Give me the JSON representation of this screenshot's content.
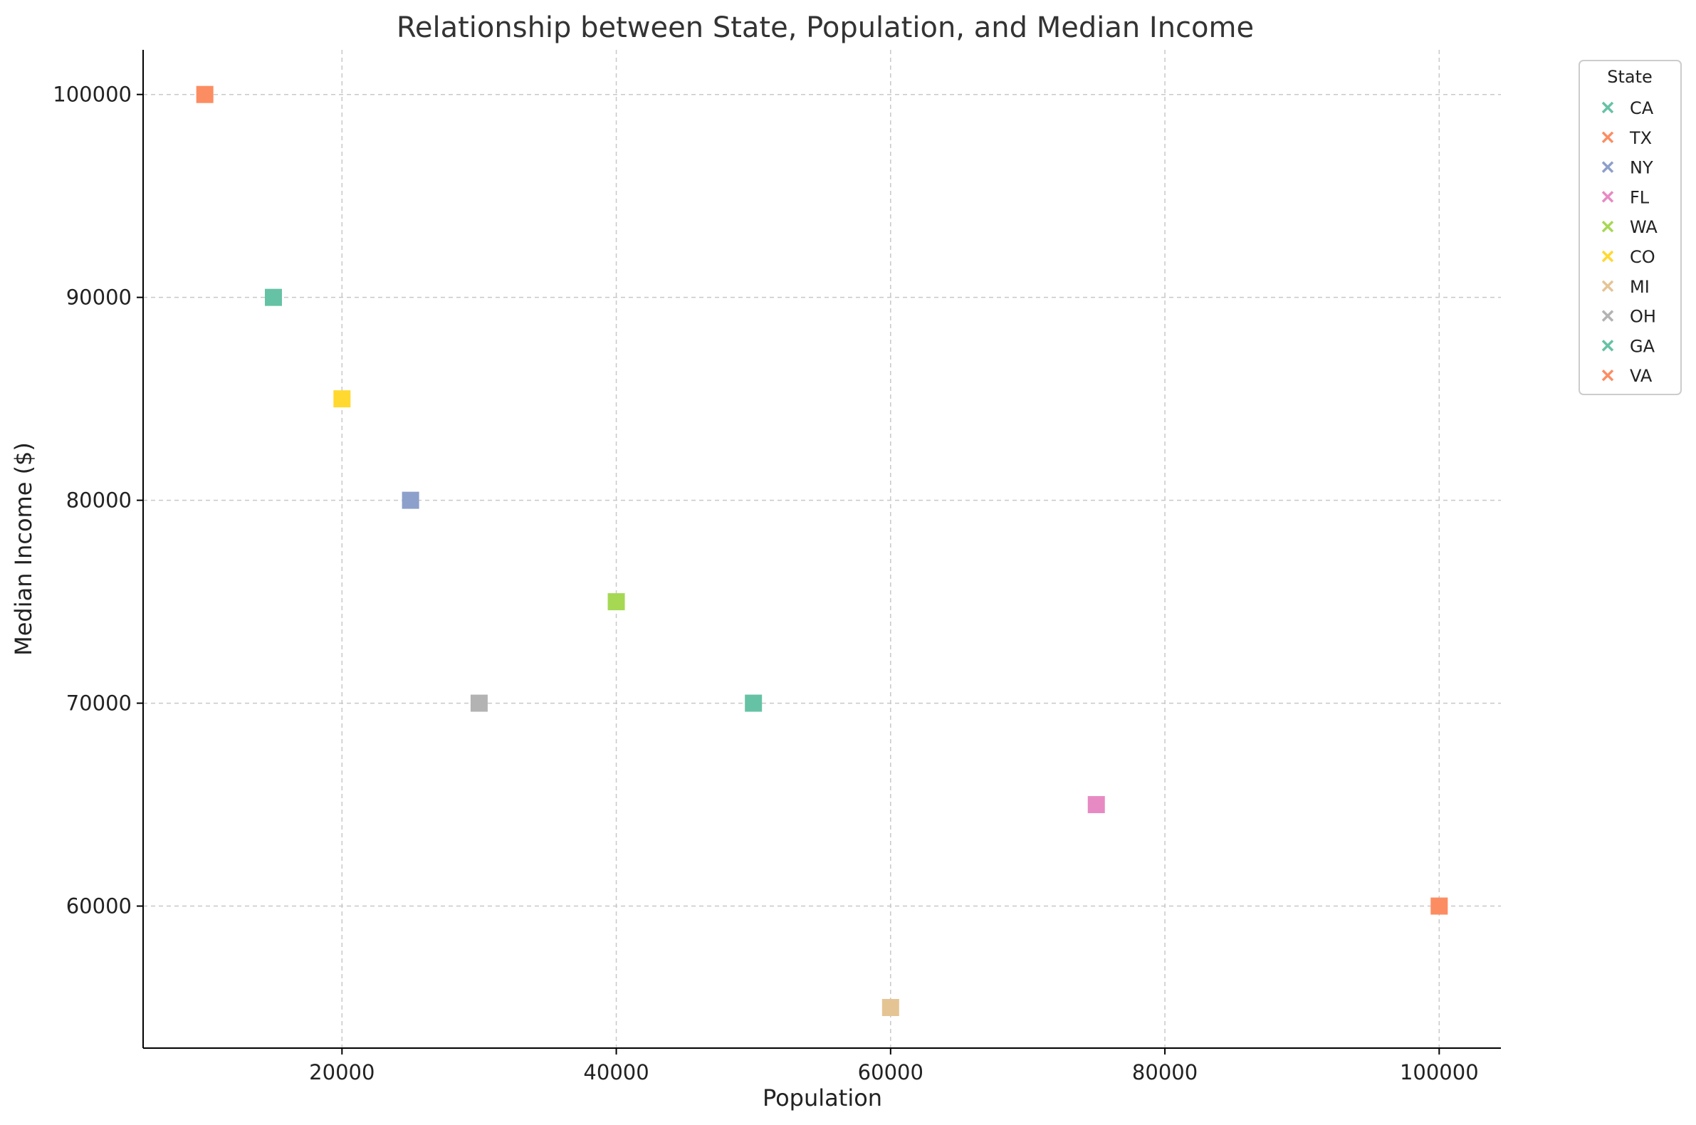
{
  "chart_data": {
    "type": "scatter",
    "title": "Relationship between State, Population, and Median Income",
    "xlabel": "Population",
    "ylabel": "Median Income ($)",
    "xlim": [
      5500,
      104500
    ],
    "ylim": [
      53000,
      102200
    ],
    "xticks": [
      20000,
      40000,
      60000,
      80000,
      100000
    ],
    "yticks": [
      60000,
      70000,
      80000,
      90000,
      100000
    ],
    "grid": true,
    "legend": {
      "title": "State",
      "placement": "outside-top-right",
      "marker": "x"
    },
    "marker": "square",
    "series": [
      {
        "name": "CA",
        "color": "#66c2a5",
        "x": 15000,
        "y": 90000
      },
      {
        "name": "TX",
        "color": "#fc8d62",
        "x": 100000,
        "y": 60000
      },
      {
        "name": "NY",
        "color": "#8da0cb",
        "x": 25000,
        "y": 80000
      },
      {
        "name": "FL",
        "color": "#e78ac3",
        "x": 75000,
        "y": 65000
      },
      {
        "name": "WA",
        "color": "#a6d854",
        "x": 40000,
        "y": 75000
      },
      {
        "name": "CO",
        "color": "#ffd92f",
        "x": 20000,
        "y": 85000
      },
      {
        "name": "MI",
        "color": "#e5c494",
        "x": 60000,
        "y": 55000
      },
      {
        "name": "OH",
        "color": "#b3b3b3",
        "x": 30000,
        "y": 70000
      },
      {
        "name": "GA",
        "color": "#66c2a5",
        "x": 50000,
        "y": 70000
      },
      {
        "name": "VA",
        "color": "#fc8d62",
        "x": 10000,
        "y": 100000
      }
    ]
  }
}
